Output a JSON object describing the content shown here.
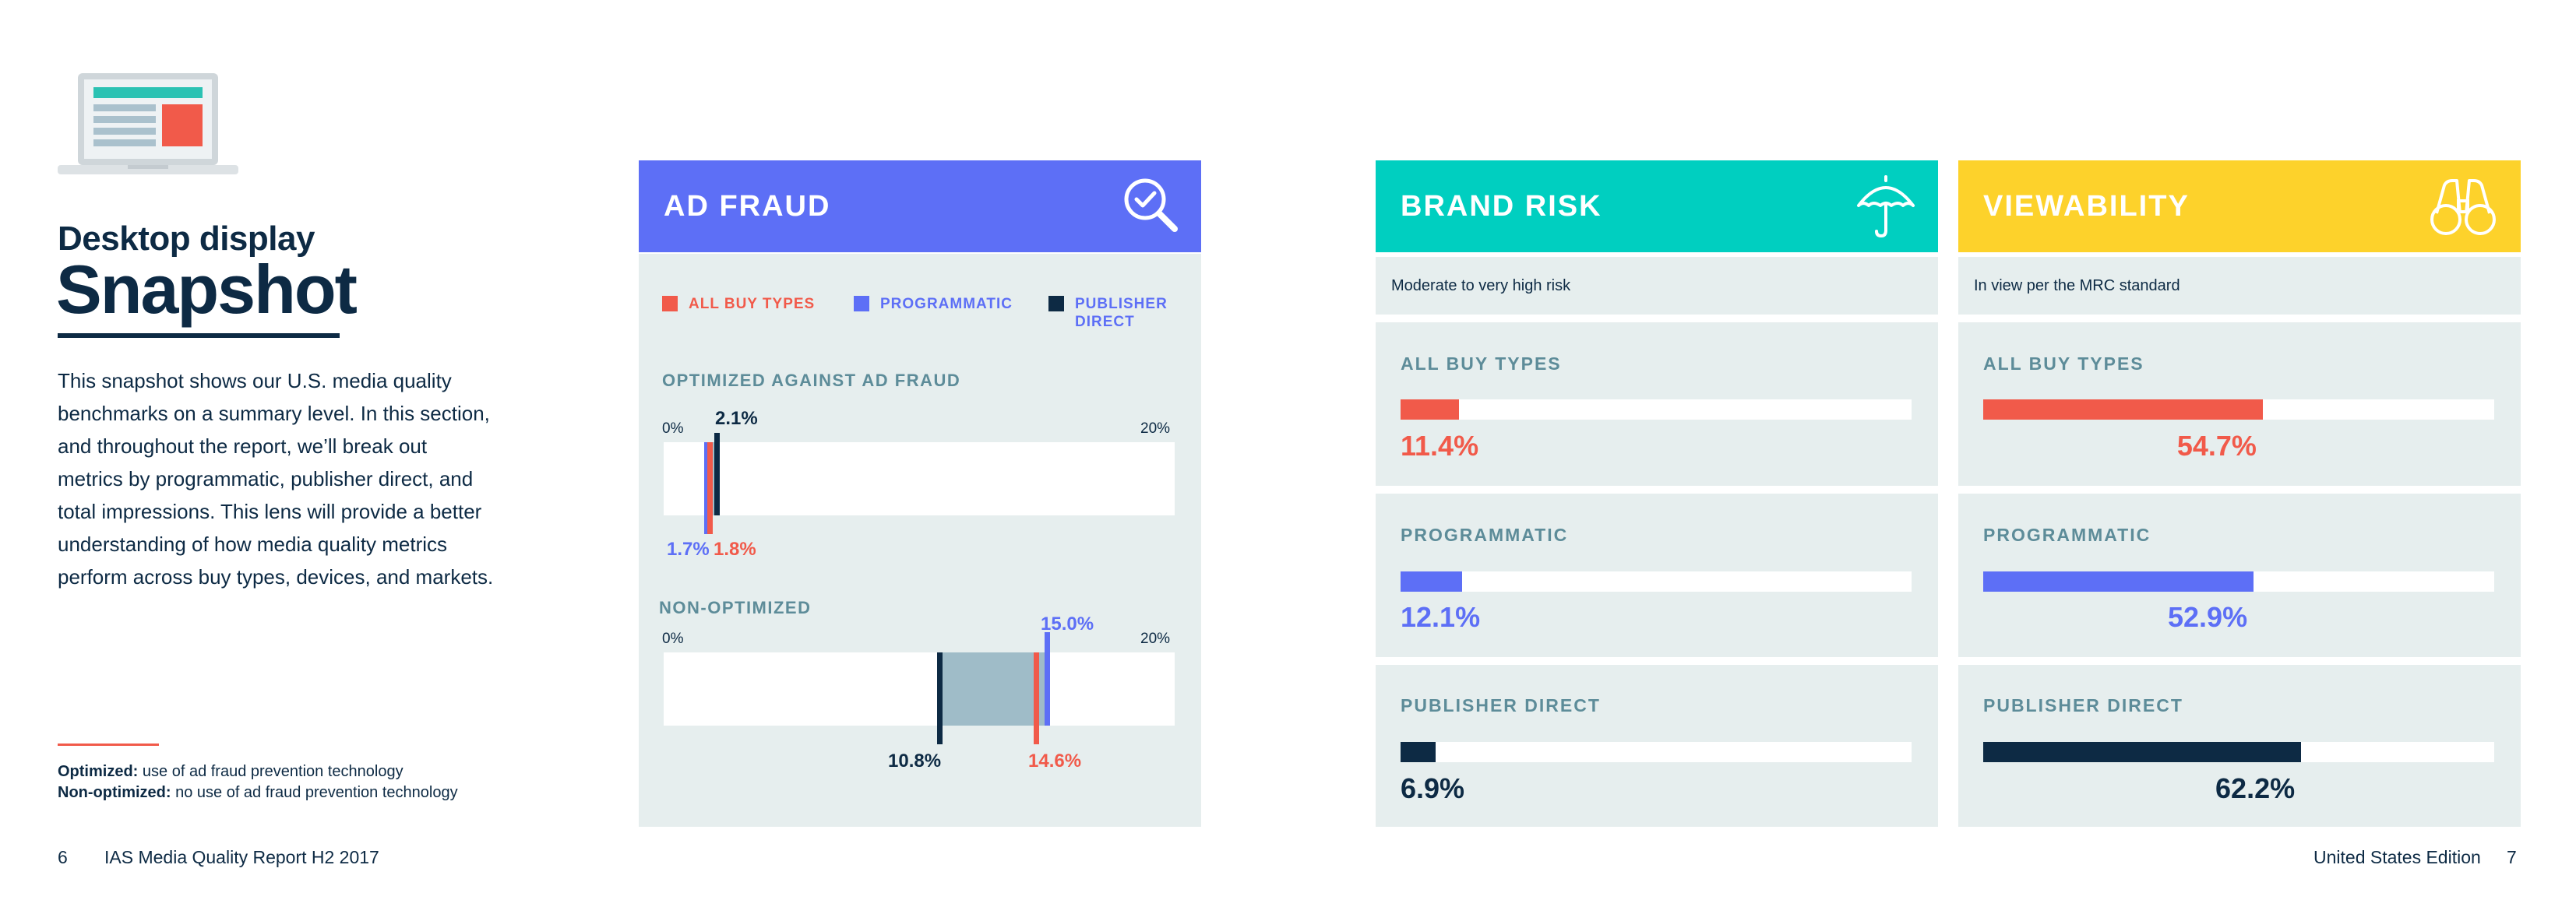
{
  "left": {
    "kicker": "Desktop display",
    "title": "Snapshot",
    "intro": "This snapshot shows our U.S. media quality benchmarks on a summary level. In this section, and throughout the report, we’ll break out metrics by programmatic, publisher direct, and total impressions. This lens will provide a better understanding of how media quality metrics perform across buy types, devices, and markets.",
    "def_opt_term": "Optimized:",
    "def_opt_text": " use of ad fraud prevention technology",
    "def_non_term": "Non-optimized:",
    "def_non_text": " no use of ad fraud prevention technology"
  },
  "footer": {
    "page_left": "6",
    "report": "IAS Media Quality Report H2 2017",
    "edition": "United States Edition",
    "page_right": "7"
  },
  "colors": {
    "all_buy_types": "#f15a4a",
    "programmatic": "#5d6ff6",
    "publisher_direct": "#0d2a44",
    "ad_fraud_header": "#5d6ff6",
    "brand_risk_header": "#00cfc0",
    "viewability_header": "#fdd22b"
  },
  "ad_fraud": {
    "title": "AD FRAUD",
    "icon": "magnifier-check-icon",
    "legend": [
      "ALL BUY TYPES",
      "PROGRAMMATIC",
      "PUBLISHER",
      "DIRECT"
    ],
    "optimized": {
      "label": "OPTIMIZED AGAINST AD FRAUD",
      "axis_min": "0%",
      "axis_max": "20%",
      "all_buy_types": 1.8,
      "programmatic": 1.7,
      "publisher_direct": 2.1,
      "all_label": "1.8%",
      "prog_label": "1.7%",
      "pub_label": "2.1%"
    },
    "non_optimized": {
      "label": "NON-OPTIMIZED",
      "axis_min": "0%",
      "axis_max": "20%",
      "all_buy_types": 14.6,
      "programmatic": 15.0,
      "publisher_direct": 10.8,
      "all_label": "14.6%",
      "prog_label": "15.0%",
      "pub_label": "10.8%"
    }
  },
  "brand_risk": {
    "title": "BRAND RISK",
    "icon": "umbrella-icon",
    "subtitle": "Moderate to very high risk",
    "rows": [
      {
        "label": "ALL BUY TYPES",
        "value": 11.4,
        "text": "11.4%"
      },
      {
        "label": "PROGRAMMATIC",
        "value": 12.1,
        "text": "12.1%"
      },
      {
        "label": "PUBLISHER DIRECT",
        "value": 6.9,
        "text": "6.9%"
      }
    ]
  },
  "viewability": {
    "title": "VIEWABILITY",
    "icon": "binoculars-icon",
    "subtitle": "In view per the MRC standard",
    "rows": [
      {
        "label": "ALL BUY TYPES",
        "value": 54.7,
        "text": "54.7%"
      },
      {
        "label": "PROGRAMMATIC",
        "value": 52.9,
        "text": "52.9%"
      },
      {
        "label": "PUBLISHER DIRECT",
        "value": 62.2,
        "text": "62.2%"
      }
    ]
  },
  "chart_data": [
    {
      "type": "bar",
      "title": "BRAND RISK",
      "subtitle": "Moderate to very high risk",
      "categories": [
        "ALL BUY TYPES",
        "PROGRAMMATIC",
        "PUBLISHER DIRECT"
      ],
      "values": [
        11.4,
        12.1,
        6.9
      ],
      "ylim": [
        0,
        100
      ]
    },
    {
      "type": "bar",
      "title": "VIEWABILITY",
      "subtitle": "In view per the MRC standard",
      "categories": [
        "ALL BUY TYPES",
        "PROGRAMMATIC",
        "PUBLISHER DIRECT"
      ],
      "values": [
        54.7,
        52.9,
        62.2
      ],
      "ylim": [
        0,
        100
      ]
    },
    {
      "type": "bar",
      "title": "AD FRAUD",
      "categories": [
        "OPTIMIZED AGAINST AD FRAUD",
        "NON-OPTIMIZED"
      ],
      "series": [
        {
          "name": "ALL BUY TYPES",
          "values": [
            1.8,
            14.6
          ]
        },
        {
          "name": "PROGRAMMATIC",
          "values": [
            1.7,
            15.0
          ]
        },
        {
          "name": "PUBLISHER DIRECT",
          "values": [
            2.1,
            10.8
          ]
        }
      ],
      "ylim": [
        0,
        20
      ]
    }
  ]
}
